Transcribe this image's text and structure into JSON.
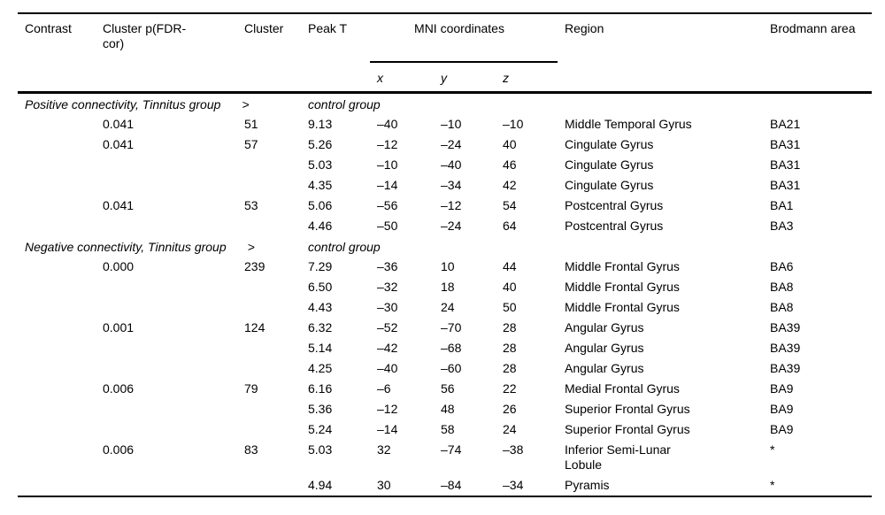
{
  "table": {
    "headers": {
      "contrast": "Contrast",
      "cluster_p": "Cluster p(FDR-cor)",
      "cluster": "Cluster",
      "peak_t": "Peak T",
      "mni": "MNI coordinates",
      "x": "x",
      "y": "y",
      "z": "z",
      "region": "Region",
      "brodmann": "Brodmann area"
    },
    "columns_order": [
      "contrast",
      "cluster_p",
      "cluster",
      "peak_t",
      "x",
      "y",
      "z",
      "region",
      "brodmann"
    ],
    "sections": [
      {
        "label": "Positive connectivity, Tinnitus group",
        "comparator": ">",
        "label_right": "control group",
        "rows": [
          {
            "contrast": "",
            "cluster_p": "0.041",
            "cluster": "51",
            "peak_t": "9.13",
            "x": "–40",
            "y": "–10",
            "z": "–10",
            "region": "Middle Temporal Gyrus",
            "brodmann": "BA21"
          },
          {
            "contrast": "",
            "cluster_p": "0.041",
            "cluster": "57",
            "peak_t": "5.26",
            "x": "–12",
            "y": "–24",
            "z": "40",
            "region": "Cingulate Gyrus",
            "brodmann": "BA31"
          },
          {
            "contrast": "",
            "cluster_p": "",
            "cluster": "",
            "peak_t": "5.03",
            "x": "–10",
            "y": "–40",
            "z": "46",
            "region": "Cingulate Gyrus",
            "brodmann": "BA31"
          },
          {
            "contrast": "",
            "cluster_p": "",
            "cluster": "",
            "peak_t": "4.35",
            "x": "–14",
            "y": "–34",
            "z": "42",
            "region": "Cingulate Gyrus",
            "brodmann": "BA31"
          },
          {
            "contrast": "",
            "cluster_p": "0.041",
            "cluster": "53",
            "peak_t": "5.06",
            "x": "–56",
            "y": "–12",
            "z": "54",
            "region": "Postcentral Gyrus",
            "brodmann": "BA1"
          },
          {
            "contrast": "",
            "cluster_p": "",
            "cluster": "",
            "peak_t": "4.46",
            "x": "–50",
            "y": "–24",
            "z": "64",
            "region": "Postcentral Gyrus",
            "brodmann": "BA3"
          }
        ]
      },
      {
        "label": "Negative connectivity, Tinnitus group",
        "comparator": ">",
        "label_right": "control group",
        "rows": [
          {
            "contrast": "",
            "cluster_p": "0.000",
            "cluster": "239",
            "peak_t": "7.29",
            "x": "–36",
            "y": "10",
            "z": "44",
            "region": "Middle Frontal Gyrus",
            "brodmann": "BA6"
          },
          {
            "contrast": "",
            "cluster_p": "",
            "cluster": "",
            "peak_t": "6.50",
            "x": "–32",
            "y": "18",
            "z": "40",
            "region": "Middle Frontal Gyrus",
            "brodmann": "BA8"
          },
          {
            "contrast": "",
            "cluster_p": "",
            "cluster": "",
            "peak_t": "4.43",
            "x": "–30",
            "y": "24",
            "z": "50",
            "region": "Middle Frontal Gyrus",
            "brodmann": "BA8"
          },
          {
            "contrast": "",
            "cluster_p": "0.001",
            "cluster": "124",
            "peak_t": "6.32",
            "x": "–52",
            "y": "–70",
            "z": "28",
            "region": "Angular Gyrus",
            "brodmann": "BA39"
          },
          {
            "contrast": "",
            "cluster_p": "",
            "cluster": "",
            "peak_t": "5.14",
            "x": "–42",
            "y": "–68",
            "z": "28",
            "region": "Angular Gyrus",
            "brodmann": "BA39"
          },
          {
            "contrast": "",
            "cluster_p": "",
            "cluster": "",
            "peak_t": "4.25",
            "x": "–40",
            "y": "–60",
            "z": "28",
            "region": "Angular Gyrus",
            "brodmann": "BA39"
          },
          {
            "contrast": "",
            "cluster_p": "0.006",
            "cluster": "79",
            "peak_t": "6.16",
            "x": "–6",
            "y": "56",
            "z": "22",
            "region": "Medial Frontal Gyrus",
            "brodmann": "BA9"
          },
          {
            "contrast": "",
            "cluster_p": "",
            "cluster": "",
            "peak_t": "5.36",
            "x": "–12",
            "y": "48",
            "z": "26",
            "region": "Superior Frontal Gyrus",
            "brodmann": "BA9"
          },
          {
            "contrast": "",
            "cluster_p": "",
            "cluster": "",
            "peak_t": "5.24",
            "x": "–14",
            "y": "58",
            "z": "24",
            "region": "Superior Frontal Gyrus",
            "brodmann": "BA9"
          },
          {
            "contrast": "",
            "cluster_p": "0.006",
            "cluster": "83",
            "peak_t": "5.03",
            "x": "32",
            "y": "–74",
            "z": "–38",
            "region": "Inferior Semi-Lunar Lobule",
            "brodmann": "*"
          },
          {
            "contrast": "",
            "cluster_p": "",
            "cluster": "",
            "peak_t": "4.94",
            "x": "30",
            "y": "–84",
            "z": "–34",
            "region": "Pyramis",
            "brodmann": "*"
          }
        ]
      }
    ]
  },
  "colors": {
    "text": "#000000",
    "background": "#ffffff",
    "rule": "#000000"
  }
}
